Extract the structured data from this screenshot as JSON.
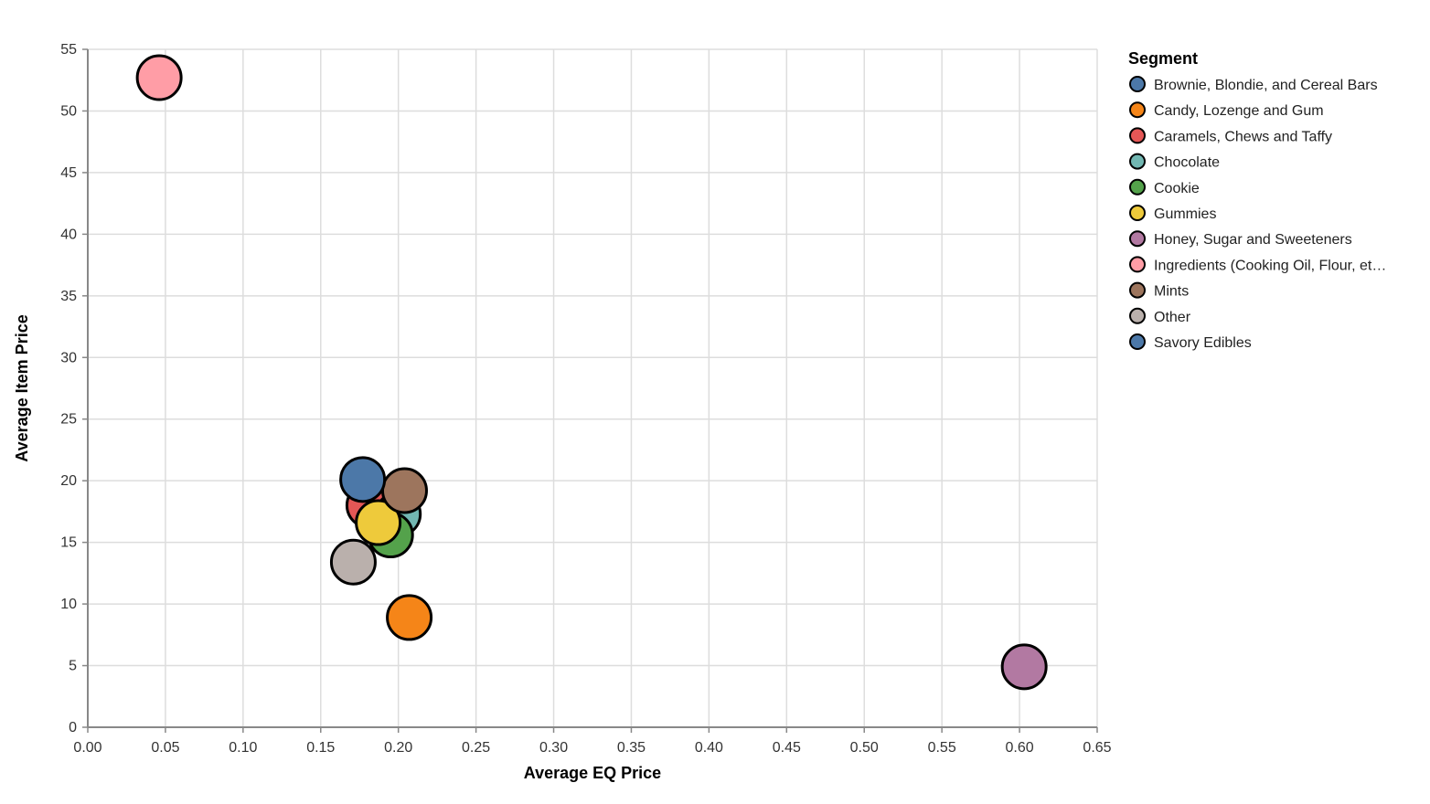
{
  "chart_data": {
    "type": "scatter",
    "xlabel": "Average EQ Price",
    "ylabel": "Average Item Price",
    "xlim": [
      0,
      0.65
    ],
    "ylim": [
      0,
      55
    ],
    "x_ticks": [
      "0.00",
      "0.05",
      "0.10",
      "0.15",
      "0.20",
      "0.25",
      "0.30",
      "0.35",
      "0.40",
      "0.45",
      "0.50",
      "0.55",
      "0.60",
      "0.65"
    ],
    "y_ticks": [
      "0",
      "5",
      "10",
      "15",
      "20",
      "25",
      "30",
      "35",
      "40",
      "45",
      "50",
      "55"
    ],
    "grid": true,
    "legend": {
      "title": "Segment",
      "placement": "right",
      "labels": [
        "Brownie, Blondie, and Cereal Bars",
        "Candy, Lozenge and Gum",
        "Caramels, Chews and Taffy",
        "Chocolate",
        "Cookie",
        "Gummies",
        "Honey, Sugar and Sweeteners",
        "Ingredients (Cooking Oil, Flour, et…",
        "Mints",
        "Other",
        "Savory Edibles"
      ]
    },
    "series": [
      {
        "name": "Brownie, Blondie, and Cereal Bars",
        "x": 0.185,
        "y": 18.3,
        "color": "#4c78a8"
      },
      {
        "name": "Candy, Lozenge and Gum",
        "x": 0.207,
        "y": 8.9,
        "color": "#f58518"
      },
      {
        "name": "Caramels, Chews and Taffy",
        "x": 0.181,
        "y": 18.0,
        "color": "#e45756"
      },
      {
        "name": "Chocolate",
        "x": 0.2,
        "y": 17.3,
        "color": "#72b7b2"
      },
      {
        "name": "Cookie",
        "x": 0.195,
        "y": 15.6,
        "color": "#54a24b"
      },
      {
        "name": "Gummies",
        "x": 0.187,
        "y": 16.6,
        "color": "#eeca3b"
      },
      {
        "name": "Honey, Sugar and Sweeteners",
        "x": 0.603,
        "y": 4.9,
        "color": "#b279a2"
      },
      {
        "name": "Ingredients (Cooking Oil, Flour, et…",
        "x": 0.046,
        "y": 52.7,
        "color": "#ff9da6"
      },
      {
        "name": "Mints",
        "x": 0.204,
        "y": 19.2,
        "color": "#9d755d"
      },
      {
        "name": "Other",
        "x": 0.171,
        "y": 13.4,
        "color": "#bab0ac"
      },
      {
        "name": "Savory Edibles",
        "x": 0.177,
        "y": 20.1,
        "color": "#4c78a8"
      }
    ]
  }
}
